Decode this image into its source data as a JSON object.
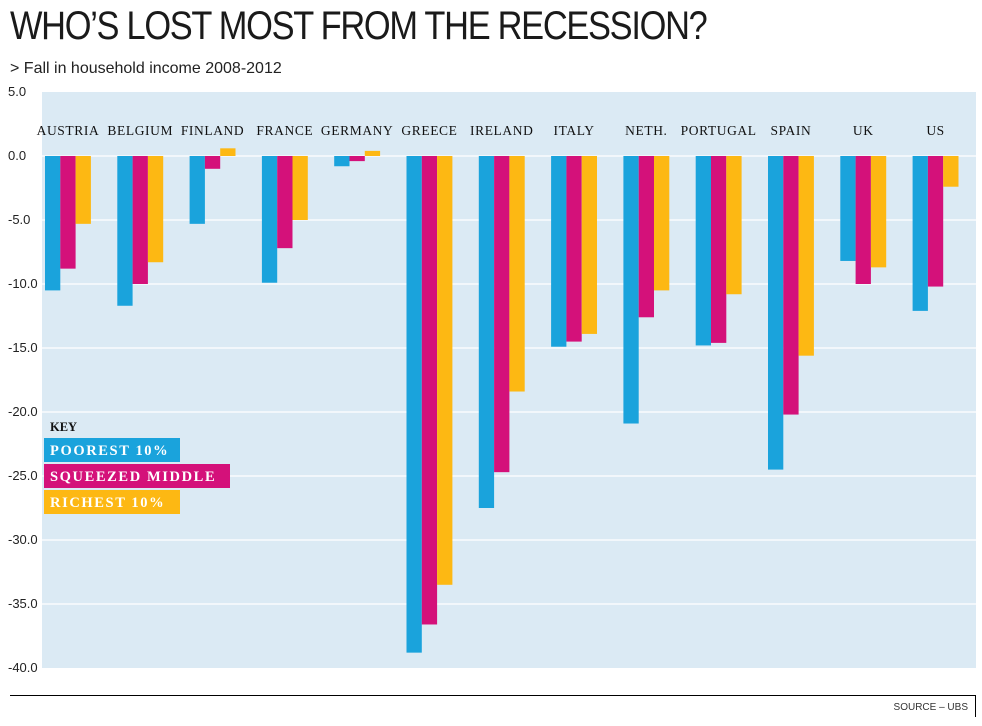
{
  "chart_data": {
    "type": "bar",
    "title": "WHO’S LOST MOST FROM THE RECESSION?",
    "subtitle": "> Fall in household income 2008-2012",
    "source": "SOURCE – UBS",
    "categories": [
      "AUSTRIA",
      "BELGIUM",
      "FINLAND",
      "FRANCE",
      "GERMANY",
      "GREECE",
      "IRELAND",
      "ITALY",
      "NETH.",
      "PORTUGAL",
      "SPAIN",
      "UK",
      "US"
    ],
    "series": [
      {
        "name": "POOREST 10%",
        "color": "#1aa3dc",
        "values": [
          -10.5,
          -11.7,
          -5.3,
          -9.9,
          -0.8,
          -38.8,
          -27.5,
          -14.9,
          -20.9,
          -14.8,
          -24.5,
          -8.2,
          -12.1
        ]
      },
      {
        "name": "SQUEEZED MIDDLE",
        "color": "#d4117a",
        "values": [
          -8.8,
          -10.0,
          -1.0,
          -7.2,
          -0.4,
          -36.6,
          -24.7,
          -14.5,
          -12.6,
          -14.6,
          -20.2,
          -10.0,
          -10.2
        ]
      },
      {
        "name": "RICHEST 10%",
        "color": "#fdb813",
        "values": [
          -5.3,
          -8.3,
          0.6,
          -5.0,
          0.4,
          -33.5,
          -18.4,
          -13.9,
          -10.5,
          -10.8,
          -15.6,
          -8.7,
          -2.4
        ]
      }
    ],
    "ylim": [
      -40,
      5
    ],
    "yticks": [
      5.0,
      0.0,
      -5.0,
      -10.0,
      -15.0,
      -20.0,
      -25.0,
      -30.0,
      -35.0,
      -40.0
    ],
    "ytick_labels": [
      "5.0",
      "0.0",
      "-5.0",
      "-10.0",
      "-15.0",
      "-20.0",
      "-25.0",
      "-30.0",
      "-35.0",
      "-40.0"
    ],
    "legend_title": "KEY",
    "legend_placement": "left",
    "grid": true,
    "background_color": "#dbeaf4"
  }
}
